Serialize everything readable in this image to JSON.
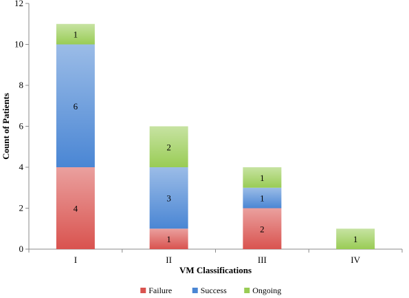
{
  "chart_data": {
    "type": "bar",
    "stacked": true,
    "categories": [
      "I",
      "II",
      "III",
      "IV"
    ],
    "series": [
      {
        "name": "Failure",
        "values": [
          4,
          1,
          2,
          0
        ],
        "color": "#d9534f"
      },
      {
        "name": "Success",
        "values": [
          6,
          3,
          1,
          0
        ],
        "color": "#4a86d4"
      },
      {
        "name": "Ongoing",
        "values": [
          1,
          2,
          1,
          1
        ],
        "color": "#99cc55"
      }
    ],
    "ylim": [
      0,
      12
    ],
    "yticks": [
      "0",
      "2",
      "4",
      "6",
      "8",
      "10",
      "12"
    ],
    "xlabel": "VM Classifications",
    "ylabel": "Count of Patients",
    "legend_position": "bottom",
    "grid": false
  }
}
